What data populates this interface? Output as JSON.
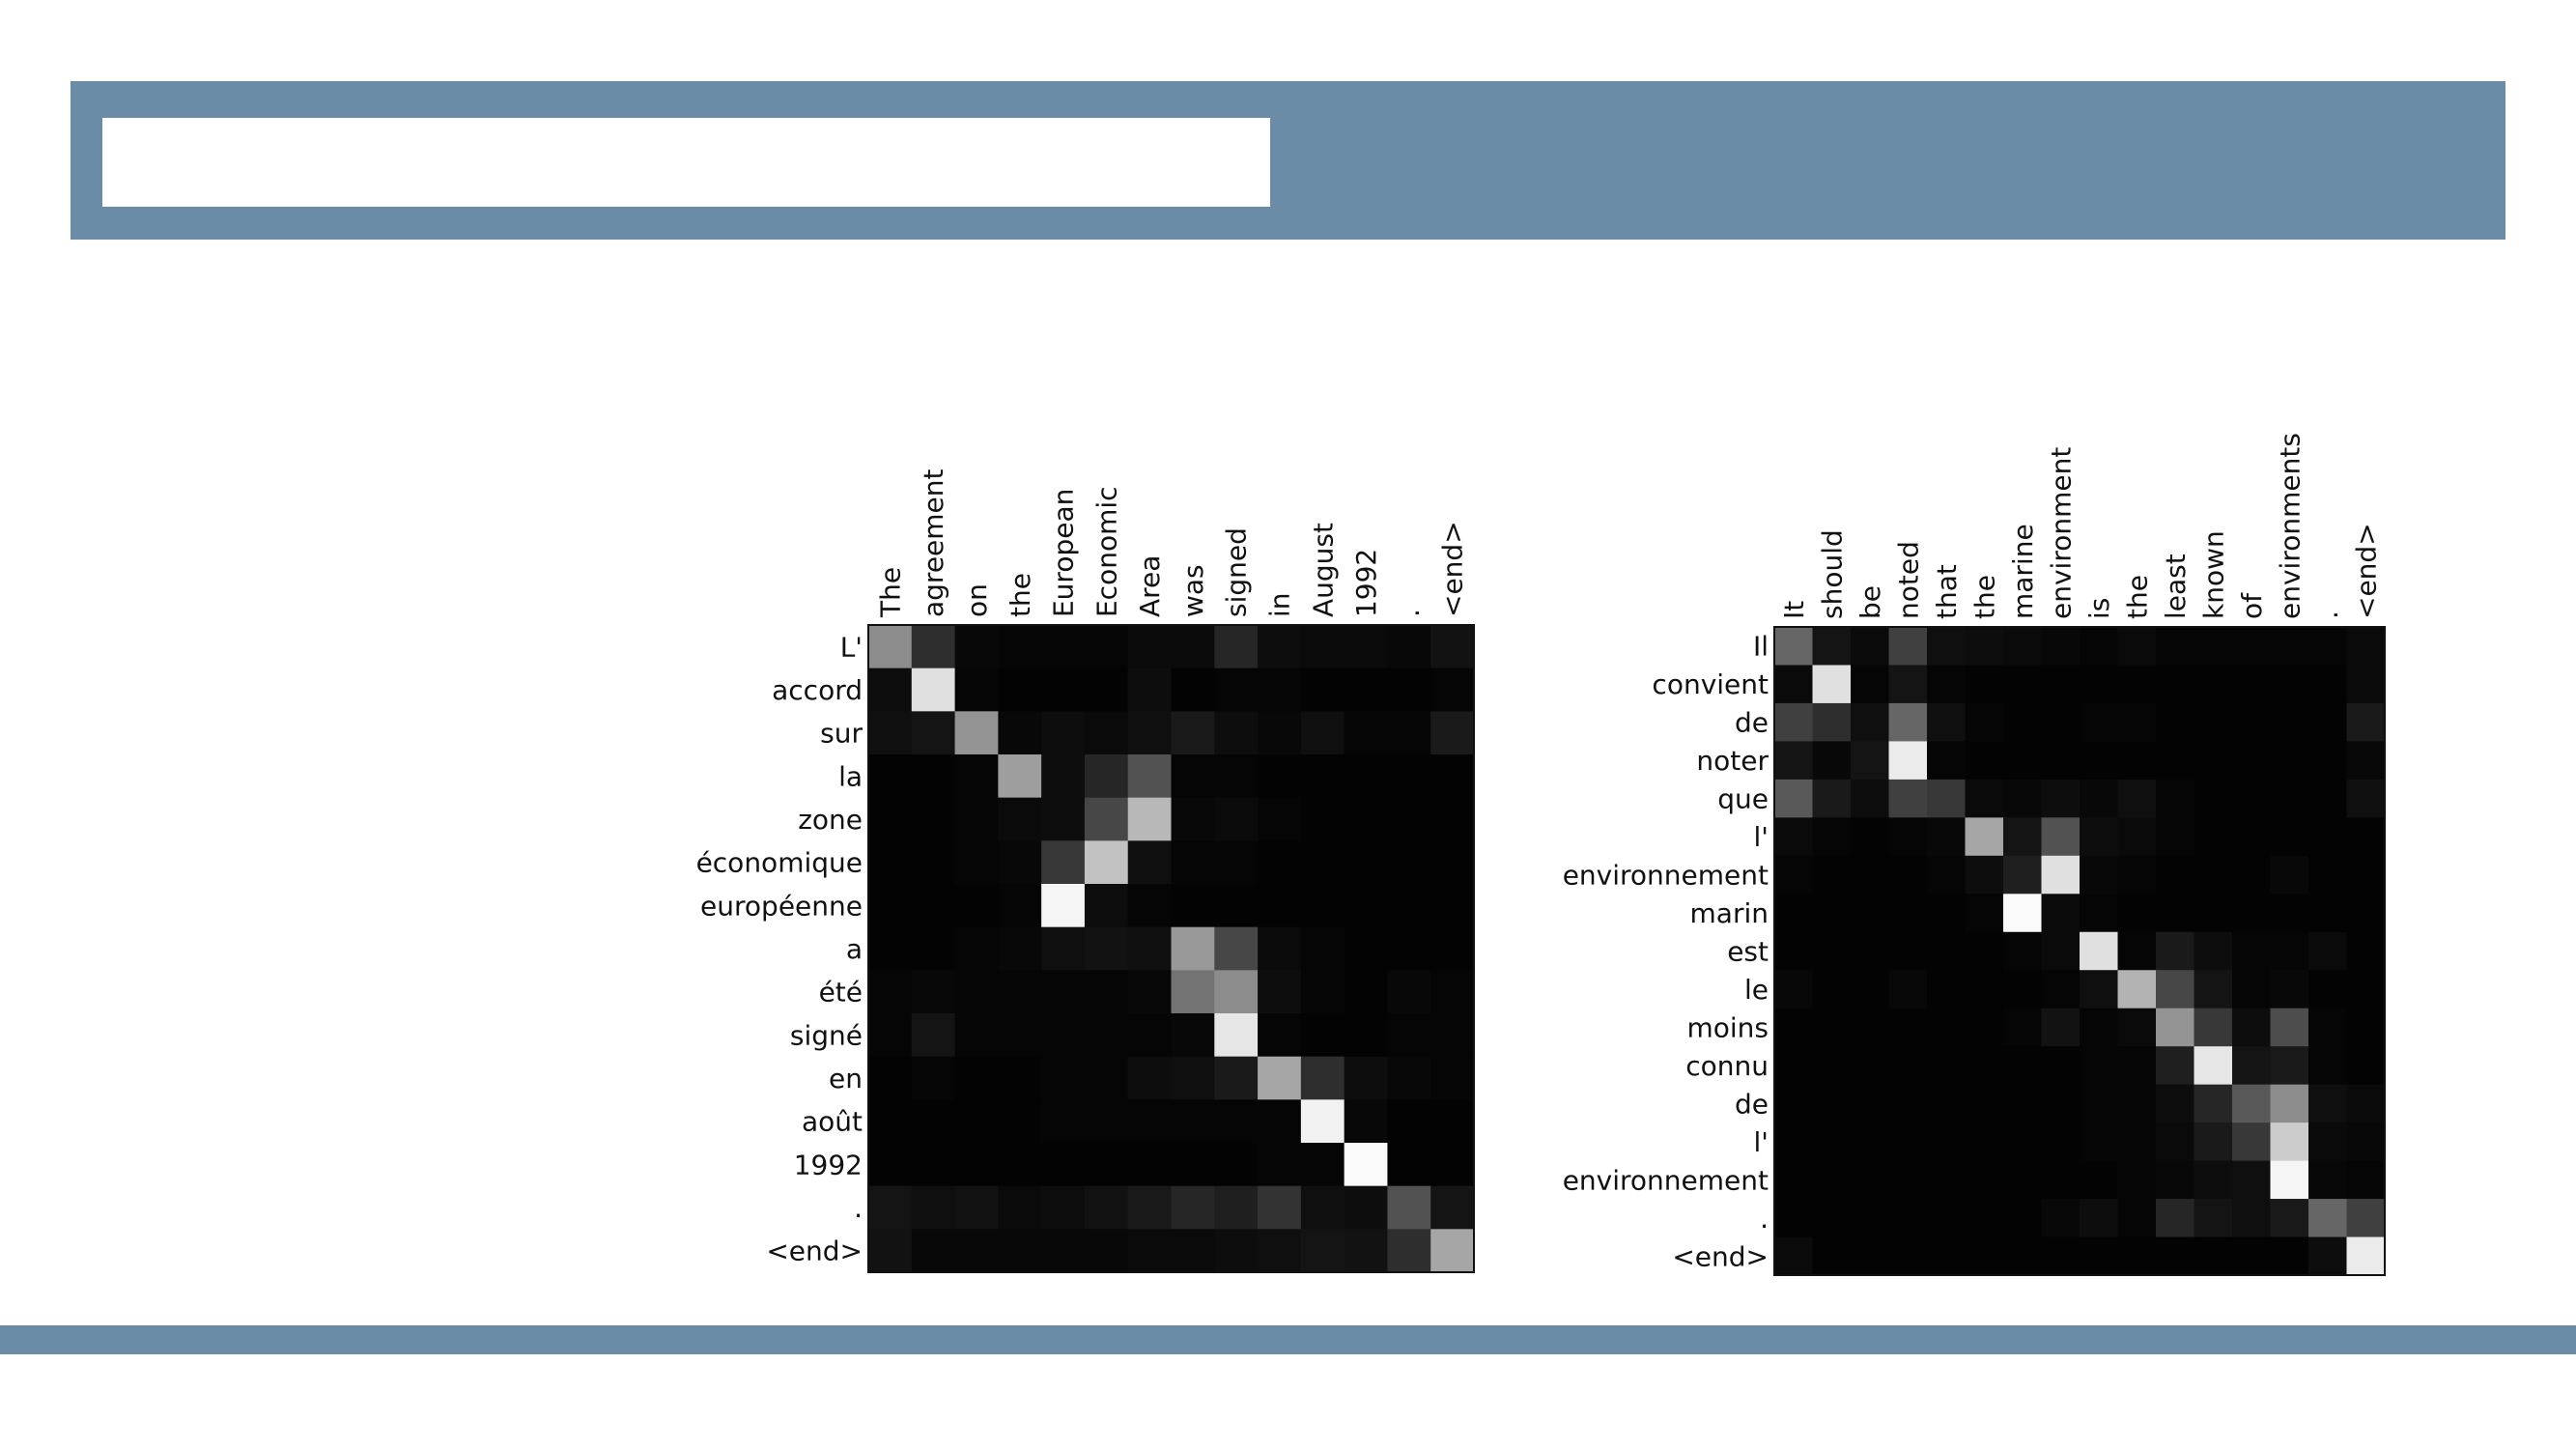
{
  "slide": {
    "header_color": "#6a8ca6",
    "title": ""
  },
  "chart_data": [
    {
      "type": "heatmap",
      "colormap": "gray",
      "x_labels": [
        "The",
        "agreement",
        "on",
        "the",
        "European",
        "Economic",
        "Area",
        "was",
        "signed",
        "in",
        "August",
        "1992",
        ".",
        "<end>"
      ],
      "y_labels": [
        "L'",
        "accord",
        "sur",
        "la",
        "zone",
        "économique",
        "européenne",
        "a",
        "été",
        "signé",
        "en",
        "août",
        "1992",
        ".",
        "<end>"
      ],
      "values": [
        [
          0.55,
          0.18,
          0.03,
          0.02,
          0.02,
          0.02,
          0.04,
          0.04,
          0.15,
          0.05,
          0.04,
          0.04,
          0.03,
          0.07
        ],
        [
          0.05,
          0.88,
          0.02,
          0.01,
          0.01,
          0.01,
          0.05,
          0.01,
          0.02,
          0.02,
          0.01,
          0.01,
          0.01,
          0.02
        ],
        [
          0.06,
          0.08,
          0.58,
          0.03,
          0.05,
          0.04,
          0.06,
          0.1,
          0.05,
          0.03,
          0.06,
          0.02,
          0.02,
          0.1
        ],
        [
          0.01,
          0.01,
          0.02,
          0.62,
          0.05,
          0.15,
          0.32,
          0.02,
          0.02,
          0.01,
          0.01,
          0.01,
          0.01,
          0.01
        ],
        [
          0.01,
          0.01,
          0.02,
          0.04,
          0.05,
          0.28,
          0.72,
          0.03,
          0.04,
          0.02,
          0.01,
          0.01,
          0.01,
          0.01
        ],
        [
          0.01,
          0.01,
          0.02,
          0.03,
          0.22,
          0.76,
          0.06,
          0.02,
          0.02,
          0.01,
          0.01,
          0.01,
          0.01,
          0.01
        ],
        [
          0.01,
          0.01,
          0.01,
          0.02,
          0.96,
          0.05,
          0.02,
          0.01,
          0.01,
          0.01,
          0.01,
          0.01,
          0.01,
          0.01
        ],
        [
          0.01,
          0.01,
          0.02,
          0.03,
          0.06,
          0.07,
          0.06,
          0.6,
          0.28,
          0.04,
          0.02,
          0.01,
          0.01,
          0.01
        ],
        [
          0.02,
          0.03,
          0.02,
          0.02,
          0.02,
          0.02,
          0.03,
          0.45,
          0.55,
          0.05,
          0.02,
          0.01,
          0.03,
          0.02
        ],
        [
          0.02,
          0.08,
          0.02,
          0.02,
          0.02,
          0.02,
          0.02,
          0.03,
          0.9,
          0.02,
          0.01,
          0.01,
          0.02,
          0.02
        ],
        [
          0.01,
          0.02,
          0.01,
          0.01,
          0.02,
          0.02,
          0.05,
          0.06,
          0.1,
          0.65,
          0.18,
          0.05,
          0.03,
          0.02
        ],
        [
          0.01,
          0.01,
          0.01,
          0.01,
          0.02,
          0.02,
          0.02,
          0.02,
          0.02,
          0.02,
          0.95,
          0.03,
          0.01,
          0.01
        ],
        [
          0.01,
          0.01,
          0.01,
          0.01,
          0.01,
          0.01,
          0.01,
          0.01,
          0.01,
          0.02,
          0.02,
          0.98,
          0.01,
          0.01
        ],
        [
          0.08,
          0.06,
          0.07,
          0.04,
          0.05,
          0.07,
          0.1,
          0.15,
          0.12,
          0.2,
          0.06,
          0.05,
          0.32,
          0.08
        ],
        [
          0.07,
          0.03,
          0.03,
          0.03,
          0.03,
          0.03,
          0.04,
          0.04,
          0.05,
          0.06,
          0.08,
          0.07,
          0.18,
          0.65
        ]
      ]
    },
    {
      "type": "heatmap",
      "colormap": "gray",
      "x_labels": [
        "It",
        "should",
        "be",
        "noted",
        "that",
        "the",
        "marine",
        "environment",
        "is",
        "the",
        "least",
        "known",
        "of",
        "environments",
        ".",
        "<end>"
      ],
      "y_labels": [
        "Il",
        "convient",
        "de",
        "noter",
        "que",
        "l'",
        "environnement",
        "marin",
        "est",
        "le",
        "moins",
        "connu",
        "de",
        "l'",
        "environnement",
        ".",
        "<end>"
      ],
      "values": [
        [
          0.4,
          0.08,
          0.04,
          0.25,
          0.06,
          0.05,
          0.04,
          0.03,
          0.02,
          0.04,
          0.02,
          0.02,
          0.02,
          0.02,
          0.02,
          0.04
        ],
        [
          0.04,
          0.88,
          0.02,
          0.08,
          0.02,
          0.01,
          0.01,
          0.01,
          0.01,
          0.01,
          0.01,
          0.01,
          0.01,
          0.01,
          0.01,
          0.04
        ],
        [
          0.25,
          0.18,
          0.06,
          0.4,
          0.06,
          0.02,
          0.01,
          0.01,
          0.02,
          0.02,
          0.01,
          0.01,
          0.01,
          0.01,
          0.01,
          0.1
        ],
        [
          0.08,
          0.03,
          0.08,
          0.92,
          0.02,
          0.01,
          0.01,
          0.01,
          0.01,
          0.01,
          0.01,
          0.01,
          0.01,
          0.01,
          0.01,
          0.03
        ],
        [
          0.35,
          0.1,
          0.05,
          0.25,
          0.22,
          0.04,
          0.03,
          0.05,
          0.03,
          0.06,
          0.02,
          0.01,
          0.01,
          0.01,
          0.01,
          0.06
        ],
        [
          0.04,
          0.02,
          0.01,
          0.02,
          0.03,
          0.65,
          0.08,
          0.32,
          0.05,
          0.04,
          0.02,
          0.01,
          0.01,
          0.01,
          0.01,
          0.01
        ],
        [
          0.02,
          0.01,
          0.01,
          0.01,
          0.02,
          0.05,
          0.12,
          0.88,
          0.03,
          0.02,
          0.01,
          0.01,
          0.01,
          0.03,
          0.01,
          0.01
        ],
        [
          0.01,
          0.01,
          0.01,
          0.01,
          0.01,
          0.02,
          0.98,
          0.04,
          0.02,
          0.01,
          0.01,
          0.01,
          0.01,
          0.01,
          0.01,
          0.01
        ],
        [
          0.01,
          0.01,
          0.01,
          0.01,
          0.01,
          0.01,
          0.02,
          0.04,
          0.88,
          0.02,
          0.1,
          0.05,
          0.02,
          0.02,
          0.04,
          0.01
        ],
        [
          0.03,
          0.01,
          0.01,
          0.03,
          0.01,
          0.01,
          0.01,
          0.02,
          0.06,
          0.7,
          0.28,
          0.08,
          0.02,
          0.03,
          0.01,
          0.01
        ],
        [
          0.01,
          0.01,
          0.01,
          0.01,
          0.01,
          0.01,
          0.02,
          0.07,
          0.02,
          0.04,
          0.58,
          0.22,
          0.05,
          0.3,
          0.02,
          0.01
        ],
        [
          0.01,
          0.01,
          0.01,
          0.01,
          0.01,
          0.01,
          0.01,
          0.01,
          0.02,
          0.02,
          0.12,
          0.9,
          0.08,
          0.1,
          0.02,
          0.01
        ],
        [
          0.01,
          0.01,
          0.01,
          0.01,
          0.01,
          0.01,
          0.01,
          0.01,
          0.02,
          0.02,
          0.05,
          0.15,
          0.35,
          0.55,
          0.06,
          0.04
        ],
        [
          0.01,
          0.01,
          0.01,
          0.01,
          0.01,
          0.01,
          0.01,
          0.01,
          0.02,
          0.02,
          0.04,
          0.1,
          0.22,
          0.8,
          0.04,
          0.03
        ],
        [
          0.01,
          0.01,
          0.01,
          0.01,
          0.01,
          0.01,
          0.01,
          0.01,
          0.01,
          0.02,
          0.03,
          0.05,
          0.06,
          0.96,
          0.03,
          0.02
        ],
        [
          0.01,
          0.01,
          0.01,
          0.01,
          0.01,
          0.01,
          0.01,
          0.03,
          0.05,
          0.02,
          0.15,
          0.08,
          0.06,
          0.1,
          0.4,
          0.25
        ],
        [
          0.04,
          0.01,
          0.01,
          0.01,
          0.01,
          0.01,
          0.01,
          0.01,
          0.01,
          0.01,
          0.01,
          0.01,
          0.01,
          0.01,
          0.05,
          0.92
        ]
      ]
    }
  ]
}
